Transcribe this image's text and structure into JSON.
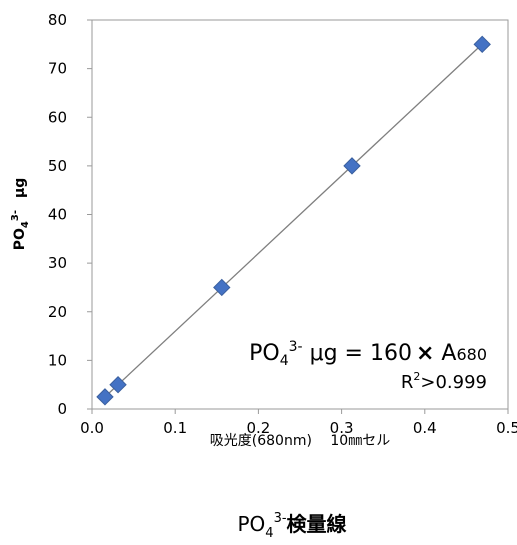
{
  "chart_data": {
    "type": "scatter",
    "title": "",
    "xlabel": "吸光度(680nm)　 10㎜セル",
    "ylabel": {
      "main": "PO",
      "sub": "4",
      "sup": "3-",
      "unit": "μg"
    },
    "xlim": [
      0,
      0.5
    ],
    "ylim": [
      0,
      80
    ],
    "x_ticks": [
      "0.0",
      "0.1",
      "0.2",
      "0.3",
      "0.4",
      "0.5"
    ],
    "y_ticks": [
      "0",
      "10",
      "20",
      "30",
      "40",
      "50",
      "60",
      "70",
      "80"
    ],
    "grid": false,
    "series": [
      {
        "marker": "diamond",
        "color": "#4472C4",
        "x": [
          0.0156,
          0.0313,
          0.156,
          0.3125,
          0.469
        ],
        "y": [
          2.5,
          5,
          25,
          50,
          75
        ]
      }
    ],
    "trendline": {
      "slope": 160,
      "intercept": 0,
      "x_range": [
        0.0156,
        0.469
      ],
      "color": "#7F7F7F"
    },
    "equation": {
      "lhs_main": "PO",
      "lhs_sub": "4",
      "lhs_sup": "3-",
      "lhs_unit": " μg = 160",
      "times": "×",
      "rhs_main": " A",
      "rhs_sub": "680"
    },
    "r2": {
      "main": "R",
      "sup": "2",
      "rest": ">0.999"
    },
    "caption": {
      "main": "PO",
      "sub": "4",
      "sup": "3-",
      "rest": "検量線"
    }
  }
}
